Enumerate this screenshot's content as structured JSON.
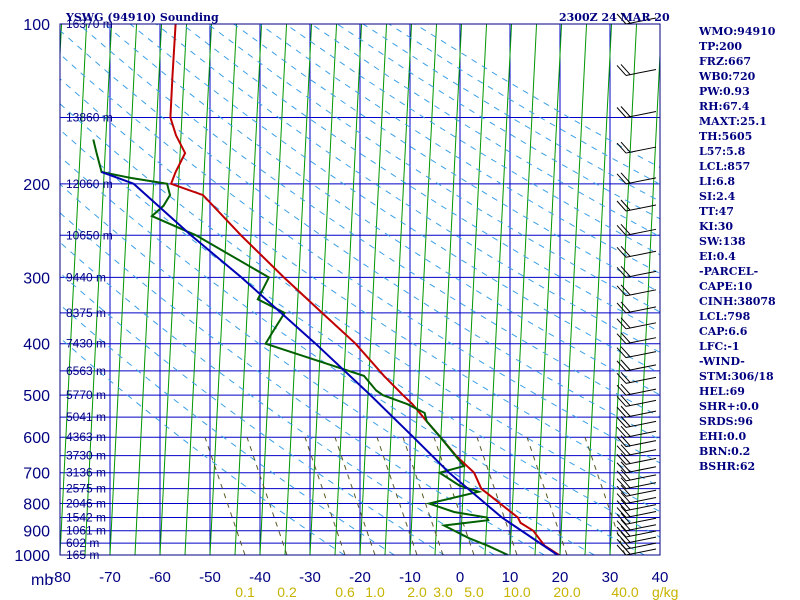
{
  "header": {
    "station": "YSWG (94910) Sounding",
    "valid_time": "2300Z 24 MAR 20"
  },
  "indices": [
    "WMO:94910",
    "TP:200",
    "FRZ:667",
    "WB0:720",
    "PW:0.93",
    "RH:67.4",
    "MAXT:25.1",
    "TH:5605",
    "L57:5.8",
    "LCL:857",
    "LI:6.8",
    "SI:2.4",
    "TT:47",
    "KI:30",
    "SW:138",
    "EI:0.4",
    "-PARCEL-",
    "CAPE:10",
    "CINH:38078",
    "LCL:798",
    "CAP:6.6",
    "LFC:-1",
    "-WIND-",
    "STM:306/18",
    "HEL:69",
    "SHR+:0.0",
    "SRDS:96",
    "EHI:0.0",
    "BRN:0.2",
    "BSHR:62"
  ],
  "chart_data": {
    "type": "line",
    "title": "YSWG (94910) Sounding",
    "y_axis": {
      "scale": "log-pressure",
      "unit": "mb",
      "range": [
        1000,
        100
      ],
      "tick_labels": [
        "100",
        "200",
        "300",
        "400",
        "500",
        "600",
        "700",
        "800",
        "900",
        "1000"
      ]
    },
    "x_axis": {
      "unit": "°C",
      "range": [
        -80,
        40
      ],
      "tick_labels": [
        "-80",
        "-70",
        "-60",
        "-50",
        "-40",
        "-30",
        "-20",
        "-10",
        "0",
        "10",
        "20",
        "30",
        "40"
      ]
    },
    "pressure_unit_label": "mb",
    "height_labels": [
      {
        "p": 100,
        "h": "16370 m"
      },
      {
        "p": 150,
        "h": "13860 m"
      },
      {
        "p": 200,
        "h": "12060 m"
      },
      {
        "p": 250,
        "h": "10650 m"
      },
      {
        "p": 300,
        "h": "9440 m"
      },
      {
        "p": 350,
        "h": "8375 m"
      },
      {
        "p": 400,
        "h": "7430 m"
      },
      {
        "p": 450,
        "h": "6563 m"
      },
      {
        "p": 500,
        "h": "5770 m"
      },
      {
        "p": 550,
        "h": "5041 m"
      },
      {
        "p": 600,
        "h": "4363 m"
      },
      {
        "p": 650,
        "h": "3730 m"
      },
      {
        "p": 700,
        "h": "3136 m"
      },
      {
        "p": 750,
        "h": "2575 m"
      },
      {
        "p": 800,
        "h": "2046 m"
      },
      {
        "p": 850,
        "h": "1542 m"
      },
      {
        "p": 900,
        "h": "1061 m"
      },
      {
        "p": 950,
        "h": "602 m"
      },
      {
        "p": 1000,
        "h": "165 m"
      }
    ],
    "mixing_ratio_labels": [
      "0.1",
      "0.2",
      "0.6",
      "1.0",
      "2.0",
      "3.0",
      "5.0",
      "10.0",
      "20.0",
      "40.0"
    ],
    "mixing_ratio_unit": "g/kg",
    "series": [
      {
        "color": "#c00000",
        "points": [
          [
            1000,
            19.8
          ],
          [
            960,
            16.8
          ],
          [
            900,
            14.4
          ],
          [
            870,
            11.8
          ],
          [
            850,
            11.2
          ],
          [
            800,
            7.5
          ],
          [
            750,
            3.6
          ],
          [
            700,
            2.0
          ],
          [
            650,
            -1.8
          ],
          [
            600,
            -5.1
          ],
          [
            560,
            -8.0
          ],
          [
            520,
            -11.0
          ],
          [
            500,
            -13.0
          ],
          [
            460,
            -17.0
          ],
          [
            400,
            -23.0
          ],
          [
            350,
            -30.0
          ],
          [
            300,
            -38.0
          ],
          [
            250,
            -47.0
          ],
          [
            210,
            -55.0
          ],
          [
            200,
            -61.5
          ],
          [
            190,
            -60.7
          ],
          [
            175,
            -59.0
          ],
          [
            162,
            -61.0
          ],
          [
            150,
            -62.3
          ],
          [
            125,
            -62.3
          ],
          [
            100,
            -62.2
          ]
        ]
      },
      {
        "color": "#006000",
        "points": [
          [
            1000,
            9.6
          ],
          [
            960,
            5.4
          ],
          [
            930,
            1.7
          ],
          [
            880,
            -3.5
          ],
          [
            860,
            5.3
          ],
          [
            850,
            5.0
          ],
          [
            830,
            -1.6
          ],
          [
            800,
            -6.7
          ],
          [
            760,
            3.1
          ],
          [
            740,
            -0.8
          ],
          [
            700,
            -4.9
          ],
          [
            680,
            -0.1
          ],
          [
            600,
            -5.1
          ],
          [
            560,
            -8.0
          ],
          [
            540,
            -8.5
          ],
          [
            520,
            -12.0
          ],
          [
            500,
            -17.0
          ],
          [
            490,
            -18.4
          ],
          [
            460,
            -21.0
          ],
          [
            420,
            -34.0
          ],
          [
            400,
            -41.0
          ],
          [
            380,
            -39.7
          ],
          [
            350,
            -37.5
          ],
          [
            330,
            -43.0
          ],
          [
            300,
            -41.0
          ],
          [
            250,
            -56.0
          ],
          [
            230,
            -65.0
          ],
          [
            220,
            -62.8
          ],
          [
            210,
            -61.6
          ],
          [
            200,
            -62.3
          ],
          [
            195,
            -69.5
          ],
          [
            190,
            -75.5
          ],
          [
            175,
            -76.7
          ],
          [
            165,
            -77.5
          ]
        ]
      },
      {
        "color": "#0000b4",
        "points": [
          [
            1000,
            19.5
          ],
          [
            850,
            8.0
          ],
          [
            700,
            -3.0
          ],
          [
            600,
            -10.5
          ],
          [
            500,
            -19.5
          ],
          [
            400,
            -31.0
          ],
          [
            300,
            -46.5
          ],
          [
            250,
            -57.0
          ],
          [
            200,
            -69.0
          ],
          [
            190,
            -75.5
          ]
        ]
      }
    ]
  }
}
